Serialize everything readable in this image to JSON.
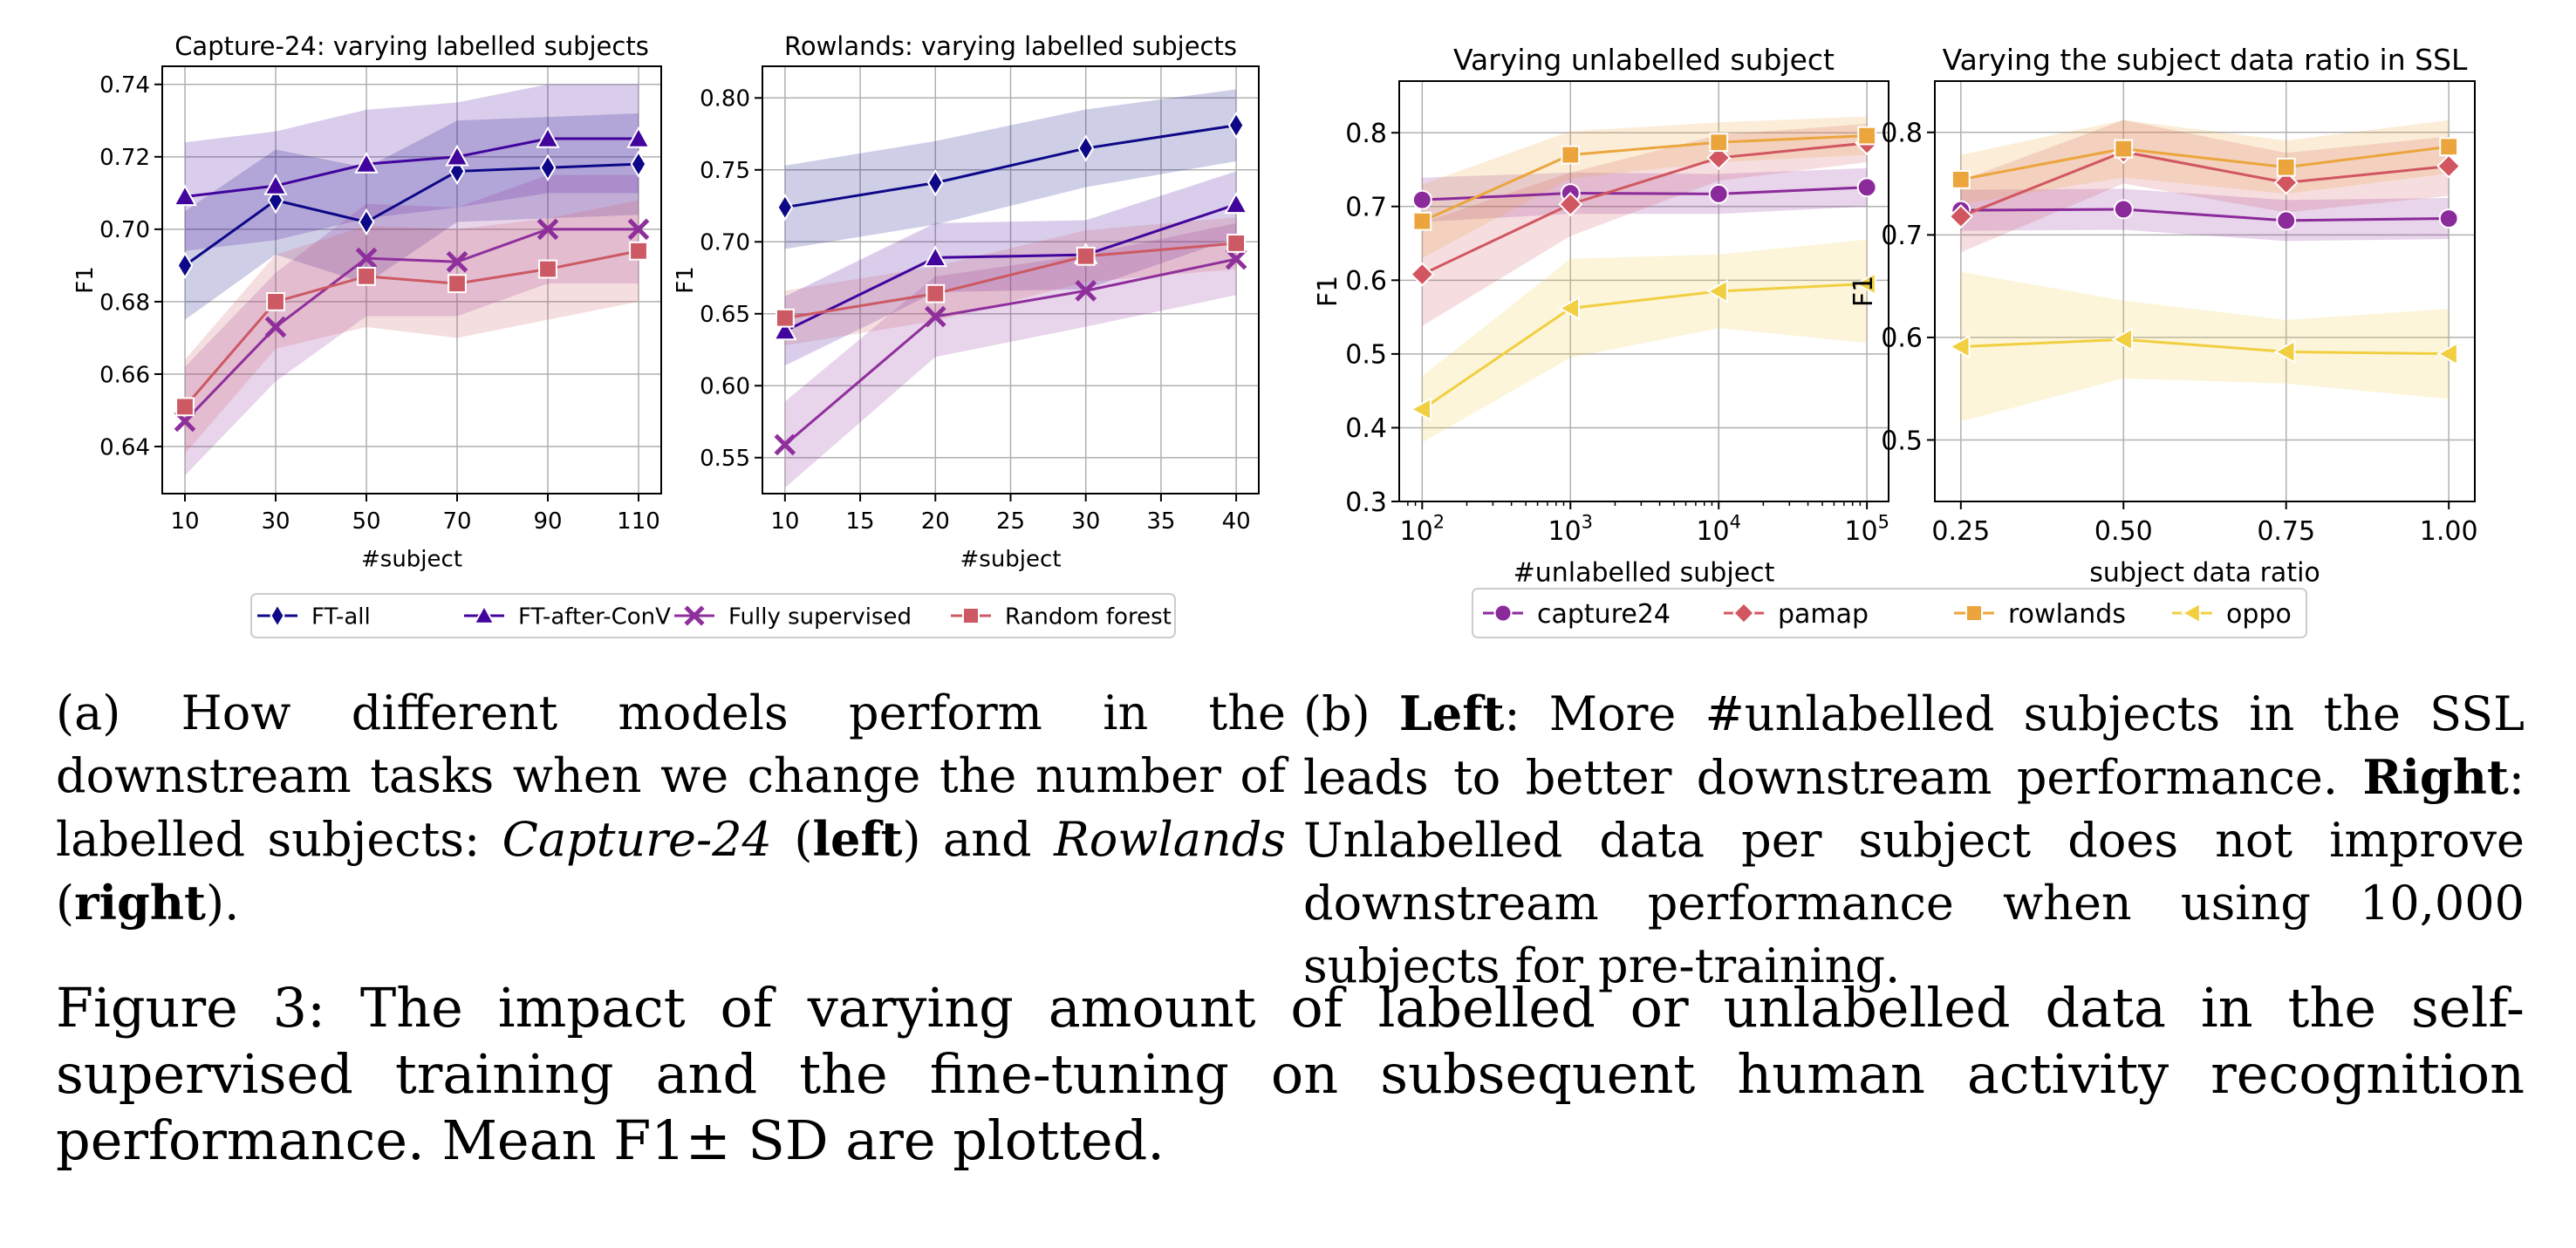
{
  "captions": {
    "a": {
      "prefix": "(a) How different models perform in the downstream tasks when we change the number of labelled subjects: ",
      "it1": "Capture-24",
      "t2": " (",
      "b1": "left",
      "t3": ") and ",
      "it2": "Rowlands",
      "t4": " (",
      "b2": "right",
      "t5": ")."
    },
    "b": {
      "prefix": "(b) ",
      "b1": "Left",
      "t1": ": More #unlabelled subjects in the SSL leads to better downstream performance. ",
      "b2": "Right",
      "t2": ": Unlabelled data per subject does not improve downstream performance when using 10,000 subjects for pre-training."
    },
    "main": "Figure 3: The impact of varying amount of labelled or unlabelled data in the self-supervised training and the fine-tuning on subsequent human activity recognition performance.  Mean F1± SD are plotted."
  },
  "legends": {
    "a": [
      {
        "name": "FT-all",
        "color": "#0d0887",
        "marker": "diamond-thin"
      },
      {
        "name": "FT-after-ConV",
        "color": "#41049d",
        "marker": "triangle-up"
      },
      {
        "name": "Fully supervised",
        "color": "#8f2f9b",
        "marker": "x"
      },
      {
        "name": "Random forest",
        "color": "#cc5963",
        "marker": "square"
      }
    ],
    "b": [
      {
        "name": "capture24",
        "color": "#8b2a9a",
        "marker": "circle"
      },
      {
        "name": "pamap",
        "color": "#d1565f",
        "marker": "diamond"
      },
      {
        "name": "rowlands",
        "color": "#eba53c",
        "marker": "square"
      },
      {
        "name": "oppo",
        "color": "#f1cf40",
        "marker": "triangle-left"
      }
    ]
  },
  "chart_data": [
    {
      "type": "line",
      "title": "Capture-24: varying labelled subjects",
      "xlabel": "#subject",
      "ylabel": "F1",
      "xscale": "linear",
      "xlim": [
        5,
        115
      ],
      "ylim": [
        0.627,
        0.745
      ],
      "xticks": [
        10,
        30,
        50,
        70,
        90,
        110
      ],
      "xtick_labels": [
        "10",
        "30",
        "50",
        "70",
        "90",
        "110"
      ],
      "yticks": [
        0.64,
        0.66,
        0.68,
        0.7,
        0.72,
        0.74
      ],
      "ytick_labels": [
        "0.64",
        "0.66",
        "0.68",
        "0.70",
        "0.72",
        "0.74"
      ],
      "grid": true,
      "x": [
        10,
        30,
        50,
        70,
        90,
        110
      ],
      "series": [
        {
          "name": "FT-all",
          "color": "#0d0887",
          "marker": "diamond-thin",
          "values": [
            0.69,
            0.708,
            0.702,
            0.716,
            0.717,
            0.718
          ],
          "lower": [
            0.675,
            0.693,
            0.685,
            0.702,
            0.703,
            0.704
          ],
          "upper": [
            0.705,
            0.722,
            0.717,
            0.73,
            0.731,
            0.732
          ]
        },
        {
          "name": "FT-after-ConV",
          "color": "#41049d",
          "marker": "triangle-up",
          "values": [
            0.709,
            0.712,
            0.718,
            0.72,
            0.725,
            0.725
          ],
          "lower": [
            0.694,
            0.697,
            0.703,
            0.706,
            0.71,
            0.71
          ],
          "upper": [
            0.724,
            0.727,
            0.733,
            0.735,
            0.74,
            0.74
          ]
        },
        {
          "name": "Fully supervised",
          "color": "#8f2f9b",
          "marker": "x",
          "values": [
            0.647,
            0.673,
            0.692,
            0.691,
            0.7,
            0.7
          ],
          "lower": [
            0.632,
            0.658,
            0.676,
            0.676,
            0.685,
            0.685
          ],
          "upper": [
            0.662,
            0.688,
            0.707,
            0.706,
            0.715,
            0.715
          ]
        },
        {
          "name": "Random forest",
          "color": "#cc5963",
          "marker": "square",
          "values": [
            0.651,
            0.68,
            0.687,
            0.685,
            0.689,
            0.694
          ],
          "lower": [
            0.638,
            0.667,
            0.673,
            0.67,
            0.675,
            0.68
          ],
          "upper": [
            0.664,
            0.693,
            0.701,
            0.7,
            0.703,
            0.708
          ]
        }
      ]
    },
    {
      "type": "line",
      "title": "Rowlands: varying labelled subjects",
      "xlabel": "#subject",
      "ylabel": "F1",
      "xscale": "linear",
      "xlim": [
        8.5,
        41.5
      ],
      "ylim": [
        0.525,
        0.822
      ],
      "xticks": [
        10,
        15,
        20,
        25,
        30,
        35,
        40
      ],
      "xtick_labels": [
        "10",
        "15",
        "20",
        "25",
        "30",
        "35",
        "40"
      ],
      "yticks": [
        0.55,
        0.6,
        0.65,
        0.7,
        0.75,
        0.8
      ],
      "ytick_labels": [
        "0.55",
        "0.60",
        "0.65",
        "0.70",
        "0.75",
        "0.80"
      ],
      "grid": true,
      "x": [
        10,
        20,
        30,
        40
      ],
      "series": [
        {
          "name": "FT-all",
          "color": "#0d0887",
          "marker": "diamond-thin",
          "values": [
            0.724,
            0.741,
            0.765,
            0.781
          ],
          "lower": [
            0.695,
            0.712,
            0.738,
            0.756
          ],
          "upper": [
            0.753,
            0.77,
            0.792,
            0.806
          ]
        },
        {
          "name": "FT-after-ConV",
          "color": "#41049d",
          "marker": "triangle-up",
          "values": [
            0.638,
            0.689,
            0.691,
            0.726
          ],
          "lower": [
            0.614,
            0.665,
            0.667,
            0.703
          ],
          "upper": [
            0.662,
            0.713,
            0.715,
            0.749
          ]
        },
        {
          "name": "Fully supervised",
          "color": "#8f2f9b",
          "marker": "x",
          "values": [
            0.559,
            0.648,
            0.666,
            0.688
          ],
          "lower": [
            0.529,
            0.62,
            0.641,
            0.663
          ],
          "upper": [
            0.589,
            0.676,
            0.691,
            0.713
          ]
        },
        {
          "name": "Random forest",
          "color": "#cc5963",
          "marker": "square",
          "values": [
            0.647,
            0.664,
            0.69,
            0.699
          ],
          "lower": [
            0.628,
            0.645,
            0.672,
            0.681
          ],
          "upper": [
            0.666,
            0.683,
            0.708,
            0.717
          ]
        }
      ]
    },
    {
      "type": "line",
      "title": "Varying unlabelled subject",
      "xlabel": "#unlabelled subject",
      "ylabel": "F1",
      "xscale": "log",
      "xlim": [
        70,
        140000
      ],
      "ylim": [
        0.3,
        0.87
      ],
      "xticks": [
        100,
        1000,
        10000,
        100000
      ],
      "xtick_labels": [
        [
          "10",
          "2"
        ],
        [
          "10",
          "3"
        ],
        [
          "10",
          "4"
        ],
        [
          "10",
          "5"
        ]
      ],
      "yticks": [
        0.3,
        0.4,
        0.5,
        0.6,
        0.7,
        0.8
      ],
      "ytick_labels": [
        "0.3",
        "0.4",
        "0.5",
        "0.6",
        "0.7",
        "0.8"
      ],
      "grid": true,
      "x": [
        100,
        1000,
        10000,
        100000
      ],
      "series": [
        {
          "name": "capture24",
          "color": "#8b2a9a",
          "marker": "circle",
          "values": [
            0.709,
            0.718,
            0.717,
            0.726
          ],
          "lower": [
            0.679,
            0.69,
            0.69,
            0.7
          ],
          "upper": [
            0.739,
            0.746,
            0.744,
            0.752
          ]
        },
        {
          "name": "pamap",
          "color": "#d1565f",
          "marker": "diamond",
          "values": [
            0.608,
            0.703,
            0.766,
            0.786
          ],
          "lower": [
            0.538,
            0.66,
            0.735,
            0.76
          ],
          "upper": [
            0.678,
            0.746,
            0.797,
            0.812
          ]
        },
        {
          "name": "rowlands",
          "color": "#eba53c",
          "marker": "square",
          "values": [
            0.68,
            0.77,
            0.787,
            0.796
          ],
          "lower": [
            0.63,
            0.738,
            0.76,
            0.77
          ],
          "upper": [
            0.73,
            0.802,
            0.814,
            0.822
          ]
        },
        {
          "name": "oppo",
          "color": "#f1cf40",
          "marker": "triangle-left",
          "values": [
            0.425,
            0.562,
            0.585,
            0.595
          ],
          "lower": [
            0.38,
            0.495,
            0.535,
            0.515
          ],
          "upper": [
            0.47,
            0.629,
            0.635,
            0.655
          ]
        }
      ]
    },
    {
      "type": "line",
      "title": "Varying the subject data ratio in SSL",
      "xlabel": "subject data ratio",
      "ylabel": "F1",
      "xscale": "linear",
      "xlim": [
        0.21,
        1.04
      ],
      "ylim": [
        0.44,
        0.85
      ],
      "xticks": [
        0.25,
        0.5,
        0.75,
        1.0
      ],
      "xtick_labels": [
        "0.25",
        "0.50",
        "0.75",
        "1.00"
      ],
      "yticks": [
        0.5,
        0.6,
        0.7,
        0.8
      ],
      "ytick_labels": [
        "0.5",
        "0.6",
        "0.7",
        "0.8"
      ],
      "grid": true,
      "x": [
        0.25,
        0.5,
        0.75,
        1.0
      ],
      "series": [
        {
          "name": "capture24",
          "color": "#8b2a9a",
          "marker": "circle",
          "values": [
            0.724,
            0.725,
            0.714,
            0.716
          ],
          "lower": [
            0.704,
            0.705,
            0.694,
            0.696
          ],
          "upper": [
            0.744,
            0.745,
            0.734,
            0.736
          ]
        },
        {
          "name": "pamap",
          "color": "#d1565f",
          "marker": "diamond",
          "values": [
            0.718,
            0.781,
            0.751,
            0.767
          ],
          "lower": [
            0.683,
            0.75,
            0.722,
            0.738
          ],
          "upper": [
            0.753,
            0.812,
            0.78,
            0.796
          ]
        },
        {
          "name": "rowlands",
          "color": "#eba53c",
          "marker": "square",
          "values": [
            0.754,
            0.784,
            0.766,
            0.786
          ],
          "lower": [
            0.73,
            0.756,
            0.74,
            0.76
          ],
          "upper": [
            0.778,
            0.812,
            0.792,
            0.812
          ]
        },
        {
          "name": "oppo",
          "color": "#f1cf40",
          "marker": "triangle-left",
          "values": [
            0.591,
            0.598,
            0.586,
            0.584
          ],
          "lower": [
            0.518,
            0.56,
            0.555,
            0.54
          ],
          "upper": [
            0.664,
            0.636,
            0.617,
            0.628
          ]
        }
      ]
    }
  ]
}
